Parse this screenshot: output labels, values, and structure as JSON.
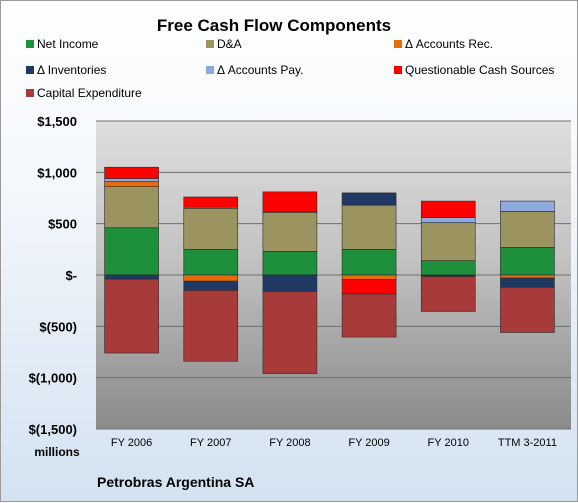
{
  "chart_data": {
    "type": "bar",
    "stacked": true,
    "title": "Free Cash Flow Components",
    "units_label": "millions",
    "footer": "Petrobras Argentina SA",
    "categories": [
      "FY 2006",
      "FY 2007",
      "FY 2008",
      "FY 2009",
      "FY 2010",
      "TTM 3-2011"
    ],
    "y_ticks": [
      1500,
      1000,
      500,
      0,
      -500,
      -1000,
      -1500
    ],
    "y_tick_labels": [
      "$1,500",
      "$1,000",
      "$500",
      "$-",
      "$(500)",
      "$(1,000)",
      "$(1,500)"
    ],
    "ylim": [
      -1500,
      1500
    ],
    "grid": true,
    "legend_position": "top",
    "series": [
      {
        "name": "Net Income",
        "color": "#1e8f3b",
        "values": [
          460,
          250,
          230,
          250,
          140,
          270
        ]
      },
      {
        "name": "D&A",
        "color": "#9c9460",
        "values": [
          400,
          400,
          380,
          430,
          370,
          350
        ]
      },
      {
        "name": "Δ Accounts Rec.",
        "color": "#e46c0a",
        "values": [
          50,
          -60,
          10,
          -45,
          0,
          -30
        ]
      },
      {
        "name": "Δ Inventories",
        "color": "#1f3864",
        "values": [
          -40,
          -90,
          -160,
          120,
          -15,
          -90
        ]
      },
      {
        "name": "Δ Accounts Pay.",
        "color": "#8ea9db",
        "values": [
          30,
          10,
          0,
          0,
          50,
          100
        ]
      },
      {
        "name": "Questionable Cash Sources",
        "color": "#ff0000",
        "values": [
          110,
          100,
          190,
          -140,
          160,
          0
        ]
      },
      {
        "name": "Capital Expenditure",
        "color": "#a83a3a",
        "values": [
          -720,
          -690,
          -800,
          -420,
          -340,
          -440
        ]
      }
    ]
  }
}
